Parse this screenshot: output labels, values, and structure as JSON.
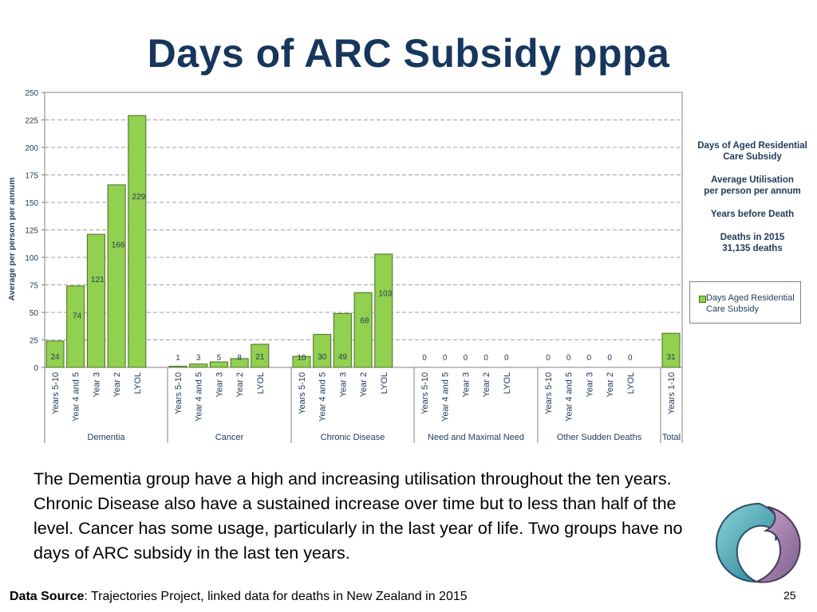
{
  "title": "Days of ARC Subsidy pppa",
  "chart_data": {
    "type": "bar",
    "ylabel": "Average per person per annum",
    "ylim": [
      0,
      250
    ],
    "yticks": [
      0,
      25,
      50,
      75,
      100,
      125,
      150,
      175,
      200,
      225,
      250
    ],
    "grid": "horizontal dashed",
    "groups": [
      {
        "name": "Dementia",
        "categories": [
          "Years 5-10",
          "Year 4 and 5",
          "Year 3",
          "Year 2",
          "LYOL"
        ],
        "values": [
          24,
          74,
          121,
          166,
          229
        ]
      },
      {
        "name": "Cancer",
        "categories": [
          "Years 5-10",
          "Year 4 and 5",
          "Year 3",
          "Year 2",
          "LYOL"
        ],
        "values": [
          1,
          3,
          5,
          8,
          21
        ]
      },
      {
        "name": "Chronic Disease",
        "categories": [
          "Years 5-10",
          "Year 4 and 5",
          "Year 3",
          "Year 2",
          "LYOL"
        ],
        "values": [
          10,
          30,
          49,
          68,
          103
        ]
      },
      {
        "name": "Need and Maximal Need",
        "categories": [
          "Years 5-10",
          "Year 4 and 5",
          "Year 3",
          "Year 2",
          "LYOL"
        ],
        "values": [
          0,
          0,
          0,
          0,
          0
        ]
      },
      {
        "name": "Other Sudden Deaths",
        "categories": [
          "Years 5-10",
          "Year 4 and 5",
          "Year 3",
          "Year 2",
          "LYOL"
        ],
        "values": [
          0,
          0,
          0,
          0,
          0
        ]
      },
      {
        "name": "Total",
        "categories": [
          "Years 1-10"
        ],
        "values": [
          31
        ]
      }
    ],
    "series": [
      {
        "name": "Days Aged Residential Care Subsidy",
        "color": "#92D050"
      }
    ],
    "legend_position": "right",
    "side_notes": [
      "Days of Aged Residential\nCare Subsidy",
      "Average Utilisation\nper person per annum",
      "Years before Death",
      "Deaths in 2015\n31,135 deaths"
    ],
    "legend_label": "Days Aged Residential\nCare Subsidy"
  },
  "description": "The Dementia group have a high and increasing utilisation throughout the ten years. Chronic Disease also have a sustained increase over time but to less than half of the level. Cancer has some usage, particularly in the last year of life. Two groups have no days of ARC subsidy in the last ten years.",
  "footer": {
    "source_label": "Data Source",
    "source_text": ": Trajectories Project, linked data for deaths in New Zealand in 2015"
  },
  "page_number": "25"
}
